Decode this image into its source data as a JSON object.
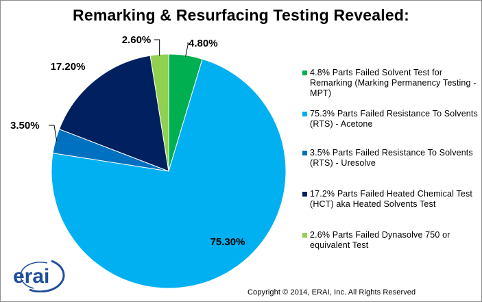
{
  "chart_data": {
    "type": "pie",
    "title": "Remarking & Resurfacing Testing Revealed:",
    "start_angle_deg": 0,
    "direction": "clockwise",
    "slices": [
      {
        "value": 4.8,
        "label": "4.80%",
        "color": "#00B050",
        "legend": "4.8% Parts Failed Solvent Test for Remarking (Marking Permanency Testing - MPT)"
      },
      {
        "value": 75.3,
        "label": "75.30%",
        "color": "#00B0F0",
        "legend": "75.3% Parts Failed Resistance To Solvents (RTS) - Acetone"
      },
      {
        "value": 3.5,
        "label": "3.50%",
        "color": "#0070C0",
        "legend": " 3.5% Parts Failed Resistance To Solvents (RTS) - Uresolve"
      },
      {
        "value": 17.2,
        "label": "17.20%",
        "color": "#002060",
        "legend": "17.2% Parts Failed Heated Chemical Test (HCT) aka Heated Solvents Test"
      },
      {
        "value": 2.6,
        "label": "2.60%",
        "color": "#92D050",
        "legend": "2.6% Parts Failed Dynasolve 750 or equivalent Test"
      }
    ],
    "legend_position": "right"
  },
  "logo": {
    "text": "erai",
    "color": "#1F4E9C"
  },
  "copyright": "Copyright © 2014, ERAI, Inc.  All Rights Reserved"
}
